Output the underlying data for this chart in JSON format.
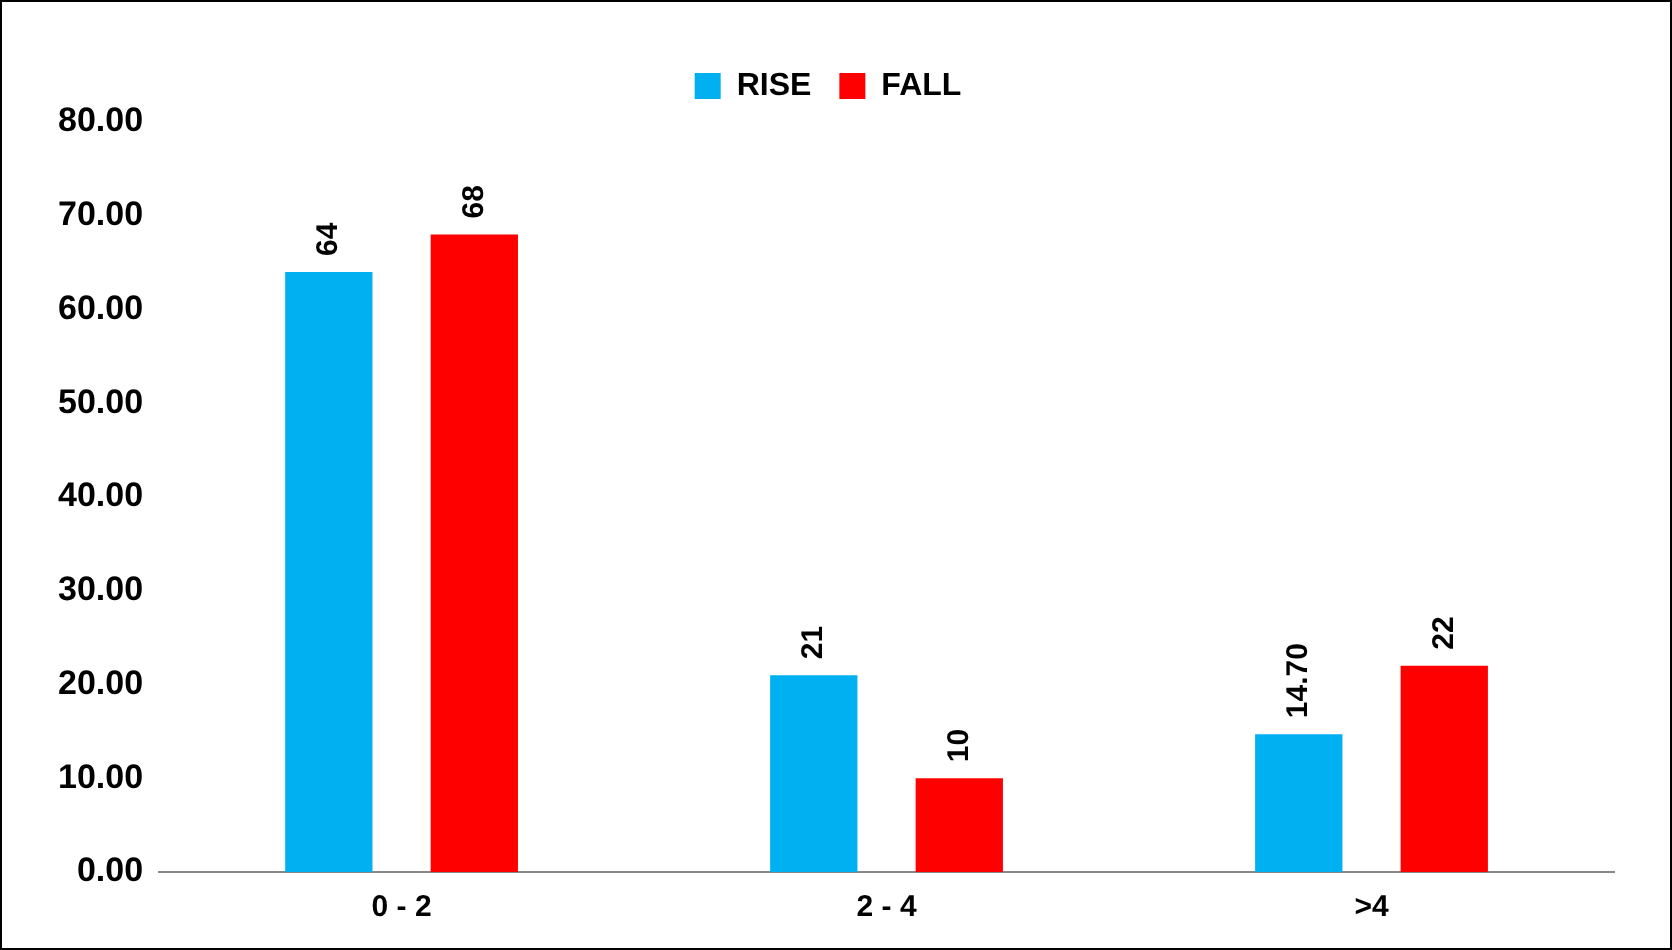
{
  "chart_data": {
    "type": "bar",
    "categories": [
      "0 - 2",
      "2 - 4",
      ">4"
    ],
    "series": [
      {
        "name": "RISE",
        "color": "#00b0f0",
        "values": [
          64,
          21,
          14.7
        ],
        "value_labels": [
          "64",
          "21",
          "14.70"
        ]
      },
      {
        "name": "FALL",
        "color": "#ff0000",
        "values": [
          68,
          10,
          22
        ],
        "value_labels": [
          "68",
          "10",
          "22"
        ]
      }
    ],
    "ylim": [
      0,
      80
    ],
    "yticks": [
      {
        "value": 0,
        "label": "0.00"
      },
      {
        "value": 10,
        "label": "10.00"
      },
      {
        "value": 20,
        "label": "20.00"
      },
      {
        "value": 30,
        "label": "30.00"
      },
      {
        "value": 40,
        "label": "40.00"
      },
      {
        "value": 50,
        "label": "50.00"
      },
      {
        "value": 60,
        "label": "60.00"
      },
      {
        "value": 70,
        "label": "70.00"
      },
      {
        "value": 80,
        "label": "80.00"
      }
    ],
    "grid": false,
    "legend": "top"
  }
}
